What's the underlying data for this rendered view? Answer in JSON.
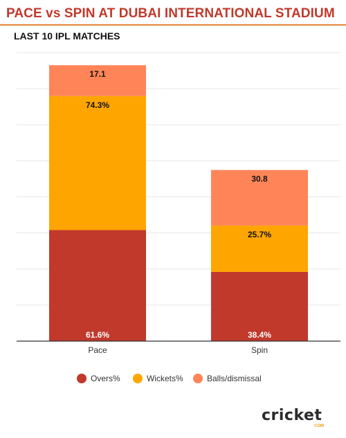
{
  "title": "PACE vs SPIN AT DUBAI INTERNATIONAL STADIUM",
  "subtitle": "LAST 10 IPL MATCHES",
  "brand": {
    "name_text": "cricket",
    "sub_text": "COM"
  },
  "chart_data": {
    "type": "bar",
    "stacked": true,
    "title": "PACE vs SPIN AT DUBAI INTERNATIONAL STADIUM",
    "subtitle": "LAST 10 IPL MATCHES",
    "categories": [
      "Pace",
      "Spin"
    ],
    "series": [
      {
        "name": "Overs%",
        "values": [
          61.6,
          38.4
        ],
        "color": "#c0392b"
      },
      {
        "name": "Wickets%",
        "values": [
          74.3,
          25.7
        ],
        "color": "#ffa500"
      },
      {
        "name": "Balls/dismissal",
        "values": [
          17.1,
          30.8
        ],
        "color": "#ff8559"
      }
    ],
    "ylim": [
      0,
      160
    ],
    "grid": true,
    "legend": "bottom"
  }
}
